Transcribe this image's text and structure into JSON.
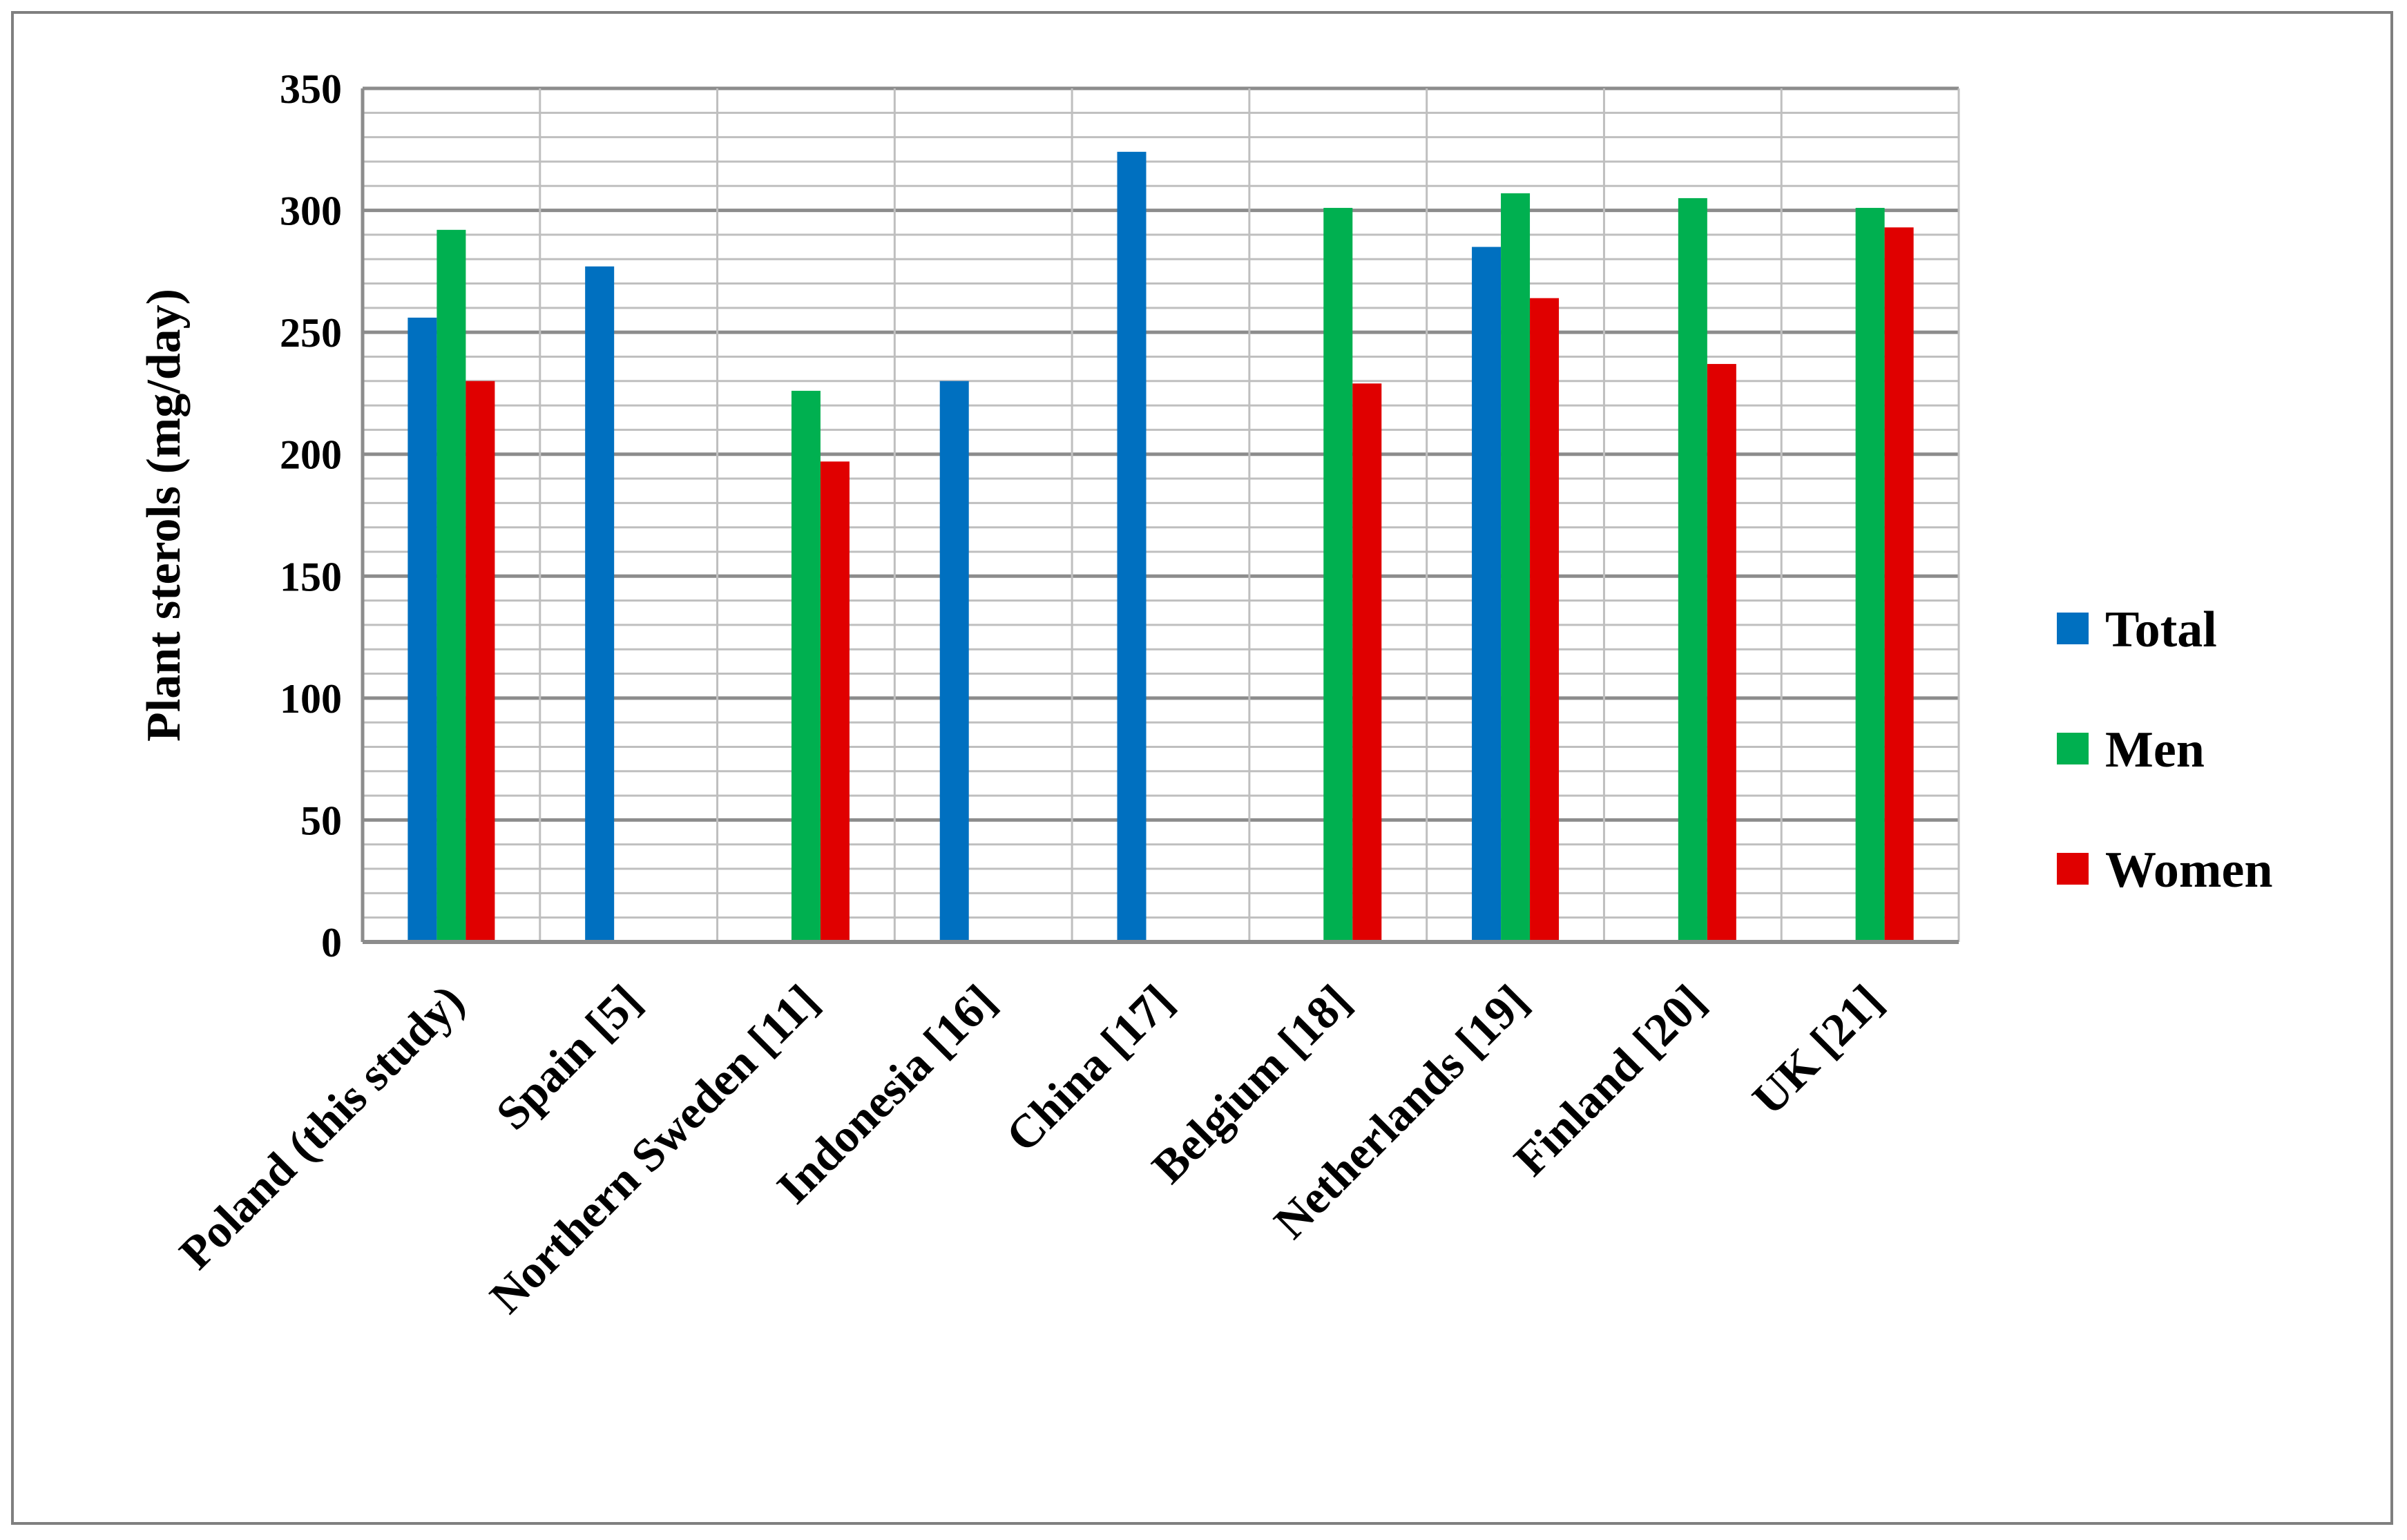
{
  "chart_data": {
    "type": "bar",
    "ylabel": "Plant sterols (mg/day)",
    "ylim": [
      0,
      350
    ],
    "yticks": [
      0,
      50,
      100,
      150,
      200,
      250,
      300,
      350
    ],
    "minor_grid_step": 10,
    "grid": true,
    "legend_position": "right",
    "categories": [
      "Poland (this study)",
      "Spain [5]",
      "Northern Sweden [11]",
      "Indonesia [16]",
      "China [17]",
      "Belgium [18]",
      "Netherlands [19]",
      "Finland [20]",
      "UK [21]"
    ],
    "series": [
      {
        "name": "Total",
        "color": "#0070c0",
        "values": [
          256,
          277,
          null,
          230,
          324,
          null,
          285,
          null,
          null
        ]
      },
      {
        "name": "Men",
        "color": "#00b050",
        "values": [
          292,
          null,
          226,
          null,
          null,
          301,
          307,
          305,
          301
        ]
      },
      {
        "name": "Women",
        "color": "#e00000",
        "values": [
          230,
          null,
          197,
          null,
          null,
          229,
          264,
          237,
          293
        ]
      }
    ]
  }
}
